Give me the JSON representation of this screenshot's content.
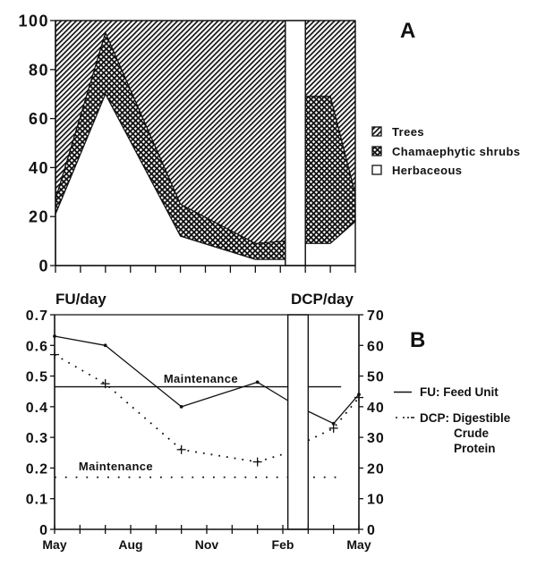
{
  "figure": {
    "colors": {
      "ink": "#111111",
      "background": "#ffffff"
    }
  },
  "chart_data": [
    {
      "panel": "A",
      "type": "area",
      "stacked": true,
      "title": "A",
      "xlabel": "",
      "ylabel": "",
      "x_ticks": [
        0,
        1,
        2,
        3,
        4,
        5,
        6,
        7,
        8,
        9,
        10,
        11,
        12
      ],
      "x_tick_labels": [],
      "ylim": [
        0,
        100
      ],
      "yticks": [
        0,
        20,
        40,
        60,
        80,
        100
      ],
      "grid": false,
      "legend_position": "right",
      "legend": [
        {
          "label": "Trees",
          "swatch": "diagonal-hatch"
        },
        {
          "label": "Chamaephytic shrubs",
          "swatch": "cross-hatch"
        },
        {
          "label": "Herbaceous",
          "swatch": "blank"
        }
      ],
      "gap": [
        9.2,
        10.0
      ],
      "segments": [
        {
          "x": [
            0,
            2,
            5,
            8,
            9.2
          ],
          "series": [
            {
              "name": "Herbaceous",
              "values": [
                21,
                70,
                12,
                2.5,
                2.5
              ]
            },
            {
              "name": "Chamaephytic shrubs",
              "values": [
                6,
                25,
                13,
                6.5,
                7.5
              ]
            },
            {
              "name": "Trees",
              "values": [
                73,
                5,
                75,
                91,
                90
              ]
            }
          ]
        },
        {
          "x": [
            10,
            11,
            12
          ],
          "series": [
            {
              "name": "Herbaceous",
              "values": [
                9,
                9,
                18
              ]
            },
            {
              "name": "Chamaephytic shrubs",
              "values": [
                60,
                60,
                11
              ]
            },
            {
              "name": "Trees",
              "values": [
                31,
                31,
                71
              ]
            }
          ]
        }
      ]
    },
    {
      "panel": "B",
      "type": "line",
      "title": "B",
      "xlabel": "",
      "ylabel_left": "FU/day",
      "ylabel_right": "DCP/day",
      "x_ticks": [
        0,
        1,
        2,
        3,
        4,
        5,
        6,
        7,
        8,
        9,
        10,
        11,
        12
      ],
      "x_tick_labels": [
        {
          "x": 0,
          "label": "May"
        },
        {
          "x": 3,
          "label": "Aug"
        },
        {
          "x": 6,
          "label": "Nov"
        },
        {
          "x": 9,
          "label": "Feb"
        },
        {
          "x": 12,
          "label": "May"
        }
      ],
      "ylim_left": [
        0,
        0.7
      ],
      "yticks_left": [
        0,
        0.1,
        0.2,
        0.3,
        0.4,
        0.5,
        0.6,
        0.7
      ],
      "ylim_right": [
        0,
        70
      ],
      "yticks_right": [
        0,
        10,
        20,
        30,
        40,
        50,
        60,
        70
      ],
      "grid": false,
      "legend_position": "right",
      "legend": [
        {
          "label": "FU: Feed Unit",
          "symbol": "solid-line"
        },
        {
          "label_lines": [
            "DCP: Digestible",
            "Crude",
            "Protein"
          ],
          "symbol": "dotted-line"
        }
      ],
      "gap": [
        9.2,
        10.0
      ],
      "series": [
        {
          "name": "FU: Feed Unit",
          "axis": "left",
          "style": "solid",
          "marker": "dot",
          "segments": [
            {
              "x": [
                0,
                2,
                5,
                8,
                9.2
              ],
              "y": [
                0.63,
                0.6,
                0.4,
                0.48,
                0.42
              ]
            },
            {
              "x": [
                10,
                11,
                12
              ],
              "y": [
                0.385,
                0.345,
                0.44
              ]
            }
          ],
          "marker_x": [
            0,
            2,
            5,
            8,
            11,
            12
          ]
        },
        {
          "name": "DCP: Digestible Crude Protein",
          "axis": "right",
          "style": "dotted",
          "marker": "plus",
          "segments": [
            {
              "x": [
                0,
                2,
                5,
                8,
                9.2
              ],
              "y": [
                57,
                47.5,
                26,
                22,
                25
              ]
            },
            {
              "x": [
                10,
                11,
                12
              ],
              "y": [
                29,
                33,
                43
              ]
            }
          ],
          "marker_x": [
            0,
            2,
            5,
            8,
            11,
            12
          ]
        }
      ],
      "reference_lines": [
        {
          "label": "Maintenance",
          "axis": "left",
          "value": 0.465,
          "style": "solid",
          "ranges": [
            [
              0,
              9.2
            ],
            [
              10,
              11.3
            ]
          ],
          "label_pos": [
            4.3,
            0.478
          ]
        },
        {
          "label": "Maintenance",
          "axis": "right",
          "value": 17,
          "style": "dotted",
          "ranges": [
            [
              0,
              9.2
            ],
            [
              10.2,
              11.2
            ]
          ],
          "label_pos": [
            0.95,
            19.3
          ]
        }
      ]
    }
  ]
}
